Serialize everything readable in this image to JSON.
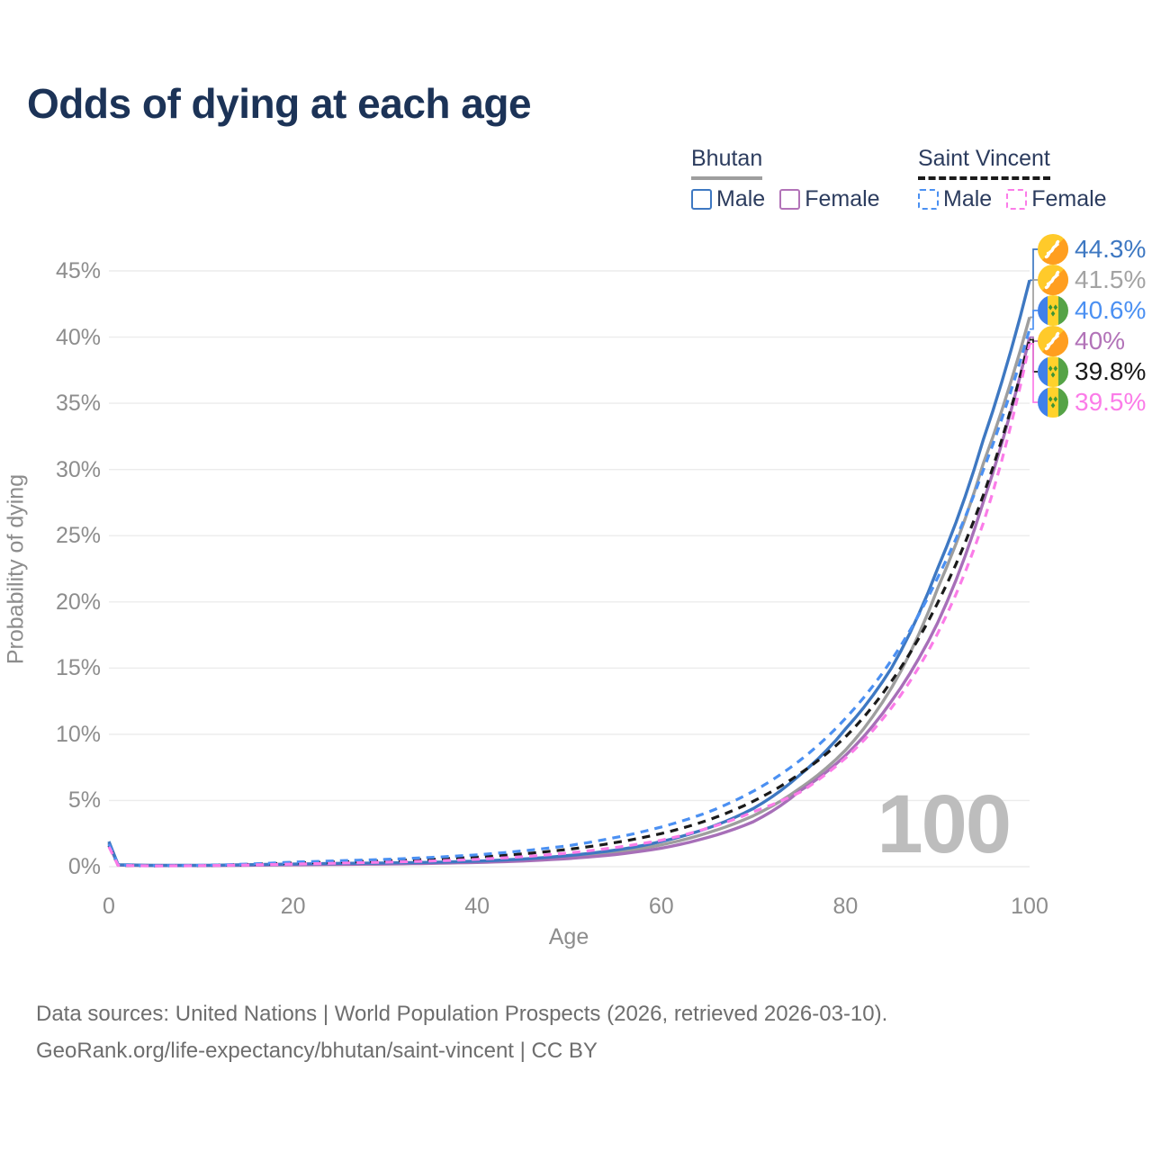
{
  "title": "Odds of dying at each age",
  "watermark": "100",
  "legend": {
    "groups": [
      {
        "label": "Bhutan",
        "underline_style": "solid",
        "underline_color": "#9e9e9e",
        "items": [
          {
            "label": "Male",
            "color": "#3e78c2",
            "dash": "solid"
          },
          {
            "label": "Female",
            "color": "#b273b8",
            "dash": "solid"
          }
        ]
      },
      {
        "label": "Saint Vincent",
        "underline_style": "dashed",
        "underline_color": "#1a1a1a",
        "items": [
          {
            "label": "Male",
            "color": "#4b90f2",
            "dash": "dashed"
          },
          {
            "label": "Female",
            "color": "#fb7ce8",
            "dash": "dashed"
          }
        ]
      }
    ]
  },
  "footer": {
    "line1": "Data sources: United Nations | World Population Prospects (2026, retrieved 2026-03-10).",
    "line2": "GeoRank.org/life-expectancy/bhutan/saint-vincent | CC BY"
  },
  "chart_data": {
    "type": "line",
    "title": "Odds of dying at each age",
    "xlabel": "Age",
    "ylabel": "Probability of dying",
    "xlim": [
      0,
      100
    ],
    "ylim": [
      0,
      45
    ],
    "x_ticks": [
      0,
      20,
      40,
      60,
      80,
      100
    ],
    "y_ticks": [
      0,
      5,
      10,
      15,
      20,
      25,
      30,
      35,
      40,
      45
    ],
    "y_tick_suffix": "%",
    "grid": "horizontal",
    "legend_position": "top-right",
    "ages": [
      0,
      1,
      5,
      10,
      15,
      20,
      25,
      30,
      35,
      40,
      45,
      50,
      55,
      60,
      65,
      70,
      75,
      80,
      85,
      90,
      95,
      100
    ],
    "series": [
      {
        "name": "Bhutan Male",
        "country": "Bhutan",
        "sex": "Male",
        "color": "#3e78c2",
        "dash": "solid",
        "flag": "bhutan",
        "end_label": "44.3%",
        "end_label_color": "#3e78c2",
        "values": [
          1.9,
          0.15,
          0.1,
          0.1,
          0.15,
          0.2,
          0.25,
          0.28,
          0.33,
          0.42,
          0.58,
          0.85,
          1.25,
          1.9,
          2.9,
          4.4,
          6.9,
          10.4,
          15.0,
          22.5,
          32.3,
          44.3
        ]
      },
      {
        "name": "Bhutan",
        "country": "Bhutan",
        "sex": "Both",
        "color": "#9e9e9e",
        "dash": "solid",
        "flag": "bhutan",
        "end_label": "41.5%",
        "end_label_color": "#a3a3a3",
        "values": [
          1.8,
          0.13,
          0.09,
          0.09,
          0.13,
          0.17,
          0.21,
          0.24,
          0.29,
          0.37,
          0.5,
          0.73,
          1.08,
          1.65,
          2.55,
          3.85,
          5.9,
          8.8,
          13.5,
          21.0,
          30.5,
          41.5
        ]
      },
      {
        "name": "Saint Vincent Male",
        "country": "Saint Vincent",
        "sex": "Male",
        "color": "#4b90f2",
        "dash": "dashed",
        "flag": "sv",
        "end_label": "40.6%",
        "end_label_color": "#4b90f2",
        "values": [
          1.7,
          0.12,
          0.08,
          0.1,
          0.2,
          0.35,
          0.45,
          0.55,
          0.7,
          0.9,
          1.2,
          1.6,
          2.2,
          3.0,
          4.1,
          5.7,
          8.0,
          11.2,
          15.6,
          21.8,
          30.0,
          40.6
        ]
      },
      {
        "name": "Bhutan Female",
        "country": "Bhutan",
        "sex": "Female",
        "color": "#a76fb8",
        "dash": "solid",
        "flag": "bhutan",
        "end_label": "40%",
        "end_label_color": "#b273b8",
        "values": [
          1.7,
          0.12,
          0.08,
          0.08,
          0.11,
          0.14,
          0.17,
          0.2,
          0.25,
          0.32,
          0.43,
          0.62,
          0.92,
          1.4,
          2.2,
          3.4,
          5.7,
          8.4,
          12.5,
          18.4,
          27.6,
          40.0
        ]
      },
      {
        "name": "Saint Vincent",
        "country": "Saint Vincent",
        "sex": "Both",
        "color": "#1a1a1a",
        "dash": "dashed",
        "flag": "sv",
        "end_label": "39.8%",
        "end_label_color": "#1a1a1a",
        "values": [
          1.6,
          0.11,
          0.07,
          0.09,
          0.17,
          0.28,
          0.36,
          0.44,
          0.56,
          0.72,
          0.97,
          1.32,
          1.82,
          2.5,
          3.5,
          4.95,
          7.0,
          9.8,
          14.0,
          19.9,
          28.1,
          39.8
        ]
      },
      {
        "name": "Saint Vincent Female",
        "country": "Saint Vincent",
        "sex": "Female",
        "color": "#fb7ce8",
        "dash": "dashed",
        "flag": "sv",
        "end_label": "39.5%",
        "end_label_color": "#fb7ce8",
        "values": [
          1.5,
          0.1,
          0.06,
          0.08,
          0.13,
          0.2,
          0.27,
          0.34,
          0.43,
          0.56,
          0.76,
          1.04,
          1.45,
          2.0,
          2.9,
          4.15,
          5.6,
          8.2,
          12.0,
          17.6,
          26.0,
          39.5
        ]
      }
    ],
    "annotations": {
      "age_cursor": "100"
    }
  }
}
